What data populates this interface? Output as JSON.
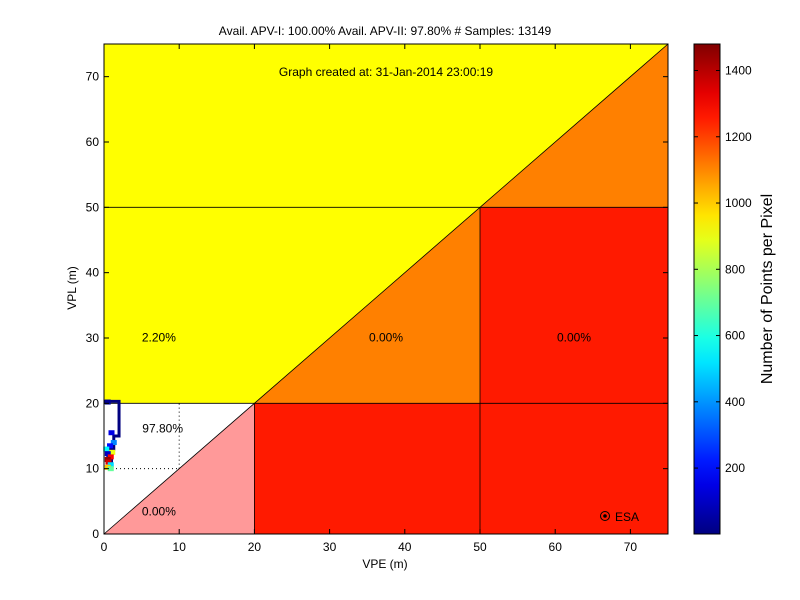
{
  "chart_data": {
    "type": "heatmap",
    "title": "Avail. APV-I: 100.00%  Avail. APV-II: 97.80%  # Samples: 13149",
    "annotation": "Graph created at: 31-Jan-2014 23:00:19",
    "watermark": "ESA",
    "xlabel": "VPE (m)",
    "ylabel": "VPL (m)",
    "xlim": [
      0,
      75
    ],
    "ylim": [
      0,
      75
    ],
    "xticks": [
      0,
      10,
      20,
      30,
      40,
      50,
      60,
      70
    ],
    "yticks": [
      0,
      10,
      20,
      30,
      40,
      50,
      60,
      70
    ],
    "colorbar": {
      "label": "Number of Points per Pixel",
      "range": [
        1,
        1480
      ],
      "ticks": [
        200,
        400,
        600,
        800,
        1000,
        1200,
        1400
      ],
      "colormap": "jet"
    },
    "regions": [
      {
        "shape": "triangle",
        "points": [
          [
            0,
            0
          ],
          [
            20,
            0
          ],
          [
            20,
            20
          ]
        ],
        "color": "#ff9999"
      },
      {
        "shape": "rect",
        "x": [
          20,
          75
        ],
        "y": [
          0,
          20
        ],
        "color": "#ff1a00"
      },
      {
        "shape": "polygon",
        "points": [
          [
            0,
            20
          ],
          [
            20,
            20
          ],
          [
            50,
            50
          ],
          [
            0,
            50
          ]
        ],
        "color": "#ffff00"
      },
      {
        "shape": "triangle",
        "points": [
          [
            20,
            20
          ],
          [
            50,
            20
          ],
          [
            50,
            50
          ]
        ],
        "color": "#ff8000"
      },
      {
        "shape": "rect",
        "x": [
          50,
          75
        ],
        "y": [
          20,
          50
        ],
        "color": "#ff1a00"
      },
      {
        "shape": "polygon",
        "points": [
          [
            0,
            50
          ],
          [
            50,
            50
          ],
          [
            75,
            75
          ],
          [
            0,
            75
          ]
        ],
        "color": "#ffff00"
      },
      {
        "shape": "triangle",
        "points": [
          [
            50,
            50
          ],
          [
            75,
            50
          ],
          [
            75,
            75
          ]
        ],
        "color": "#ff8000"
      }
    ],
    "region_labels": [
      {
        "text": "2.20%",
        "x": 7.3,
        "y": 29.5
      },
      {
        "text": "0.00%",
        "x": 37.5,
        "y": 29.5
      },
      {
        "text": "0.00%",
        "x": 62.5,
        "y": 29.5
      },
      {
        "text": "97.80%",
        "x": 7.8,
        "y": 15.5
      },
      {
        "text": "0.00%",
        "x": 7.3,
        "y": 2.8
      }
    ],
    "grid_lines": [
      {
        "x": [
          0,
          75
        ],
        "y": [
          20,
          20
        ]
      },
      {
        "x": [
          0,
          75
        ],
        "y": [
          50,
          50
        ]
      },
      {
        "x": [
          20,
          20
        ],
        "y": [
          0,
          20
        ]
      },
      {
        "x": [
          50,
          50
        ],
        "y": [
          20,
          50
        ]
      },
      {
        "x": [
          50,
          50
        ],
        "y": [
          0,
          20
        ]
      },
      {
        "x": [
          0,
          75
        ],
        "y": [
          0,
          75
        ]
      }
    ],
    "dotted_lines": [
      {
        "x": [
          10,
          10
        ],
        "y": [
          10,
          20
        ]
      },
      {
        "x": [
          0,
          10
        ],
        "y": [
          10,
          10
        ]
      }
    ],
    "boundary_line": {
      "color": "#000080",
      "points": [
        [
          0,
          20.3
        ],
        [
          2,
          20.3
        ],
        [
          2,
          15
        ],
        [
          1.3,
          15
        ],
        [
          1.3,
          13
        ],
        [
          0.5,
          13
        ],
        [
          0.5,
          12
        ],
        [
          1,
          12
        ],
        [
          1,
          10.5
        ]
      ]
    },
    "data_cells": [
      {
        "x": 0.5,
        "y": 20.2,
        "value": 30
      },
      {
        "x": 1.0,
        "y": 15.5,
        "value": 150
      },
      {
        "x": 1.3,
        "y": 14.0,
        "value": 380
      },
      {
        "x": 0.8,
        "y": 13.5,
        "value": 200
      },
      {
        "x": 0.3,
        "y": 13.0,
        "value": 550
      },
      {
        "x": 1.1,
        "y": 12.5,
        "value": 900
      },
      {
        "x": 0.5,
        "y": 12.3,
        "value": 100
      },
      {
        "x": 0.9,
        "y": 11.8,
        "value": 1300
      },
      {
        "x": 0.5,
        "y": 11.4,
        "value": 1450
      },
      {
        "x": 0.6,
        "y": 11.0,
        "value": 1350
      },
      {
        "x": 0.9,
        "y": 10.6,
        "value": 500
      },
      {
        "x": 0.5,
        "y": 10.2,
        "value": 1000
      },
      {
        "x": 0.9,
        "y": 10.0,
        "value": 700
      }
    ]
  }
}
